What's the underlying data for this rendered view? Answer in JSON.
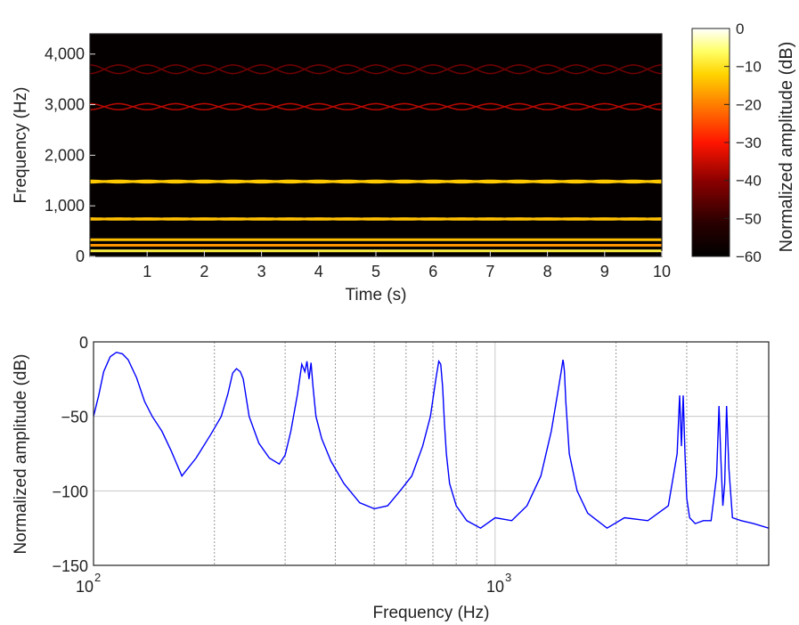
{
  "chart_data": [
    {
      "type": "heatmap",
      "title": "",
      "xlabel": "Time (s)",
      "ylabel": "Frequency (Hz)",
      "xlim": [
        0,
        10
      ],
      "ylim": [
        0,
        4400
      ],
      "xticks": [
        1,
        2,
        3,
        4,
        5,
        6,
        7,
        8,
        9,
        10
      ],
      "xtick_labels": [
        "1",
        "2",
        "3",
        "4",
        "5",
        "6",
        "7",
        "8",
        "9",
        "10"
      ],
      "yticks": [
        0,
        1000,
        2000,
        3000,
        4000
      ],
      "ytick_labels": [
        "0",
        "1,000",
        "2,000",
        "3,000",
        "4,000"
      ],
      "colormap": "hot",
      "colorbar": {
        "label": "Normalized amplitude (dB)",
        "range": [
          -60,
          0
        ],
        "ticks": [
          0,
          -10,
          -20,
          -30,
          -40,
          -50,
          -60
        ],
        "tick_labels": [
          "0",
          "−10",
          "−20",
          "−30",
          "−40",
          "−50",
          "−60"
        ]
      },
      "background_db": -60,
      "steady_tones": [
        {
          "frequency_hz": 110,
          "level_db": -8
        },
        {
          "frequency_hz": 220,
          "level_db": -18
        },
        {
          "frequency_hz": 330,
          "level_db": -14
        }
      ],
      "modulated_tones": [
        {
          "center_hz": 740,
          "deviation_hz": 6,
          "period_s": 1.0,
          "level_db": -14
        },
        {
          "center_hz": 1480,
          "deviation_hz": 12,
          "period_s": 1.0,
          "level_db": -13
        },
        {
          "center_hz": 2960,
          "deviation_hz": 60,
          "period_s": 1.0,
          "level_db": -36
        },
        {
          "center_hz": 3700,
          "deviation_hz": 85,
          "period_s": 1.0,
          "level_db": -43
        }
      ],
      "grid": false
    },
    {
      "type": "line",
      "title": "",
      "xlabel": "Frequency (Hz)",
      "ylabel": "Normalized amplitude (dB)",
      "xscale": "log",
      "xlim": [
        100,
        4800
      ],
      "ylim": [
        -150,
        0
      ],
      "xtick_labels": [
        "10",
        "2",
        "10",
        "3"
      ],
      "yticks": [
        0,
        -50,
        -100,
        -150
      ],
      "ytick_labels": [
        "0",
        "−50",
        "−100",
        "−150"
      ],
      "grid": true,
      "color": "#0000ff",
      "series": [
        {
          "x": [
            100,
            103,
            106,
            110,
            114,
            118,
            122,
            128,
            134,
            140,
            148,
            156,
            166,
            180,
            196,
            208,
            216,
            222,
            227,
            232,
            236,
            244,
            258,
            274,
            290,
            300,
            310,
            322,
            330,
            336,
            340,
            344,
            348,
            352,
            358,
            370,
            390,
            420,
            460,
            500,
            540,
            580,
            620,
            660,
            690,
            712,
            724,
            732,
            740,
            748,
            756,
            770,
            800,
            850,
            920,
            1000,
            1100,
            1200,
            1300,
            1380,
            1430,
            1460,
            1475,
            1480,
            1488,
            1500,
            1530,
            1600,
            1700,
            1900,
            2100,
            2400,
            2700,
            2840,
            2880,
            2910,
            2940,
            2970,
            3000,
            3050,
            3150,
            3300,
            3450,
            3560,
            3610,
            3650,
            3690,
            3730,
            3770,
            3820,
            3900,
            4100,
            4400,
            4800
          ],
          "y": [
            -50,
            -36,
            -20,
            -10,
            -7,
            -8,
            -12,
            -24,
            -40,
            -50,
            -60,
            -73,
            -90,
            -78,
            -62,
            -50,
            -35,
            -21,
            -18,
            -20,
            -25,
            -50,
            -68,
            -78,
            -82,
            -76,
            -60,
            -35,
            -15,
            -20,
            -13,
            -25,
            -14,
            -30,
            -50,
            -65,
            -80,
            -95,
            -108,
            -112,
            -110,
            -100,
            -90,
            -70,
            -50,
            -25,
            -13,
            -15,
            -30,
            -55,
            -75,
            -95,
            -110,
            -120,
            -125,
            -118,
            -120,
            -110,
            -90,
            -60,
            -35,
            -20,
            -12,
            -14,
            -20,
            -40,
            -75,
            -100,
            -115,
            -125,
            -118,
            -120,
            -110,
            -75,
            -36,
            -70,
            -36,
            -75,
            -105,
            -118,
            -122,
            -120,
            -120,
            -90,
            -43,
            -80,
            -110,
            -95,
            -43,
            -85,
            -118,
            -120,
            -122,
            -125
          ]
        }
      ]
    }
  ]
}
